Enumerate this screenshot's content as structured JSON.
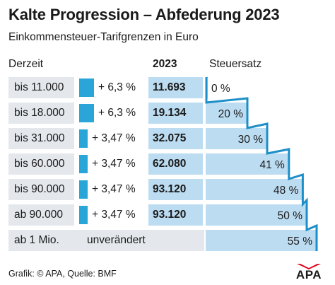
{
  "header": {
    "title": "Kalte Progression – Abfederung 2023",
    "subtitle": "Einkommensteuer-Tarifgrenzen in Euro"
  },
  "columns": {
    "current": "Derzeit",
    "new": "2023",
    "rate": "Steuersatz"
  },
  "chart_data": {
    "type": "table",
    "title": "Kalte Progression – Abfederung 2023",
    "subtitle": "Einkommensteuer-Tarifgrenzen in Euro",
    "rows": [
      {
        "current": "bis 11.000",
        "change": "+ 6,3 %",
        "change_value": 6.3,
        "new": "11.693",
        "rate": "0 %",
        "rate_value": 0
      },
      {
        "current": "bis 18.000",
        "change": "+ 6,3 %",
        "change_value": 6.3,
        "new": "19.134",
        "rate": "20 %",
        "rate_value": 20
      },
      {
        "current": "bis 31.000",
        "change": "+ 3,47 %",
        "change_value": 3.47,
        "new": "32.075",
        "rate": "30 %",
        "rate_value": 30
      },
      {
        "current": "bis 60.000",
        "change": "+ 3,47 %",
        "change_value": 3.47,
        "new": "62.080",
        "rate": "41 %",
        "rate_value": 41
      },
      {
        "current": "bis 90.000",
        "change": "+ 3,47 %",
        "change_value": 3.47,
        "new": "93.120",
        "rate": "48 %",
        "rate_value": 48
      },
      {
        "current": "ab 90.000",
        "change": "+ 3,47 %",
        "change_value": 3.47,
        "new": "93.120",
        "rate": "50 %",
        "rate_value": 50
      }
    ],
    "last_row": {
      "current": "ab 1 Mio.",
      "note": "unverändert",
      "rate": "55 %",
      "rate_value": 55
    }
  },
  "footer": {
    "source": "Grafik: © APA, Quelle: BMF",
    "logo_text": "APA"
  },
  "colors": {
    "accent": "#2aa5d8",
    "rate_fill": "#bcdcf1",
    "row_bg": "#e4e8ec",
    "stair_line": "#1d8fc8",
    "logo_red": "#e3001b"
  }
}
